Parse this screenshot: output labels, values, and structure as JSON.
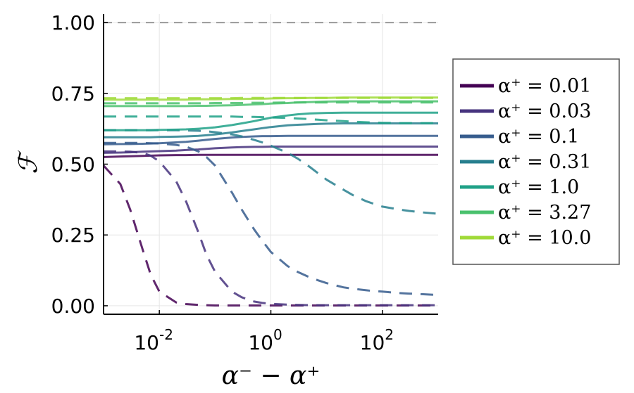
{
  "chart_data": {
    "type": "line",
    "title": "",
    "xlabel": "α⁻ − α⁺",
    "ylabel": "ℱ",
    "xscale": "log",
    "xlim": [
      0.001,
      1000
    ],
    "ylim": [
      -0.03,
      1.03
    ],
    "xticks": [
      {
        "value": 0.01,
        "base": "10",
        "exp": "-2"
      },
      {
        "value": 1,
        "base": "10",
        "exp": "0"
      },
      {
        "value": 100,
        "base": "10",
        "exp": "2"
      }
    ],
    "yticks": [
      {
        "value": 0.0,
        "label": "0.00"
      },
      {
        "value": 0.25,
        "label": "0.25"
      },
      {
        "value": 0.5,
        "label": "0.50"
      },
      {
        "value": 0.75,
        "label": "0.75"
      },
      {
        "value": 1.0,
        "label": "1.00"
      }
    ],
    "grid": true,
    "reference_line": {
      "y": 1.0,
      "style": "dashed",
      "color": "#999999"
    },
    "legend_position": "right",
    "x": [
      0.001,
      0.002,
      0.003,
      0.005,
      0.007,
      0.01,
      0.02,
      0.03,
      0.05,
      0.07,
      0.1,
      0.2,
      0.3,
      0.5,
      0.7,
      1,
      2,
      3,
      5,
      7,
      10,
      20,
      30,
      50,
      70,
      100,
      200,
      300,
      500,
      1000
    ],
    "series": [
      {
        "name": "α⁺ = 0.01",
        "color": "#440154",
        "solid": [
          0.525,
          0.527,
          0.528,
          0.529,
          0.53,
          0.531,
          0.532,
          0.532,
          0.533,
          0.533,
          0.533,
          0.533,
          0.533,
          0.533,
          0.533,
          0.533,
          0.533,
          0.533,
          0.533,
          0.533,
          0.533,
          0.533,
          0.533,
          0.533,
          0.533,
          0.533,
          0.533,
          0.533,
          0.533,
          0.533
        ],
        "dashed": [
          0.495,
          0.43,
          0.34,
          0.2,
          0.11,
          0.05,
          0.012,
          0.006,
          0.003,
          0.002,
          0.001,
          0.001,
          0.001,
          0.001,
          0.001,
          0.001,
          0.001,
          0.001,
          0.001,
          0.001,
          0.001,
          0.001,
          0.001,
          0.001,
          0.001,
          0.001,
          0.001,
          0.001,
          0.001,
          0.001
        ]
      },
      {
        "name": "α⁺ = 0.03",
        "color": "#46337e",
        "solid": [
          0.54,
          0.541,
          0.542,
          0.544,
          0.545,
          0.546,
          0.548,
          0.55,
          0.552,
          0.554,
          0.556,
          0.559,
          0.56,
          0.561,
          0.561,
          0.562,
          0.562,
          0.562,
          0.562,
          0.562,
          0.562,
          0.562,
          0.562,
          0.562,
          0.562,
          0.562,
          0.562,
          0.562,
          0.562,
          0.562
        ],
        "dashed": [
          0.545,
          0.545,
          0.544,
          0.54,
          0.53,
          0.51,
          0.44,
          0.37,
          0.26,
          0.18,
          0.12,
          0.05,
          0.03,
          0.015,
          0.01,
          0.007,
          0.004,
          0.003,
          0.002,
          0.002,
          0.002,
          0.002,
          0.002,
          0.002,
          0.002,
          0.002,
          0.002,
          0.002,
          0.002,
          0.002
        ]
      },
      {
        "name": "α⁺ = 0.1",
        "color": "#365c8d",
        "solid": [
          0.57,
          0.571,
          0.571,
          0.572,
          0.573,
          0.574,
          0.577,
          0.579,
          0.583,
          0.586,
          0.589,
          0.594,
          0.596,
          0.598,
          0.599,
          0.599,
          0.6,
          0.6,
          0.6,
          0.6,
          0.6,
          0.6,
          0.6,
          0.6,
          0.6,
          0.6,
          0.6,
          0.6,
          0.6,
          0.6
        ],
        "dashed": [
          0.575,
          0.575,
          0.575,
          0.575,
          0.574,
          0.573,
          0.568,
          0.562,
          0.545,
          0.525,
          0.495,
          0.4,
          0.34,
          0.27,
          0.23,
          0.19,
          0.14,
          0.12,
          0.1,
          0.09,
          0.08,
          0.065,
          0.06,
          0.055,
          0.052,
          0.05,
          0.045,
          0.043,
          0.041,
          0.038
        ]
      },
      {
        "name": "α⁺ = 0.31",
        "color": "#277f8e",
        "solid": [
          0.595,
          0.595,
          0.595,
          0.595,
          0.595,
          0.596,
          0.597,
          0.598,
          0.6,
          0.602,
          0.605,
          0.612,
          0.617,
          0.623,
          0.627,
          0.631,
          0.637,
          0.639,
          0.641,
          0.642,
          0.643,
          0.644,
          0.644,
          0.644,
          0.644,
          0.644,
          0.644,
          0.644,
          0.644,
          0.644
        ],
        "dashed": [
          0.62,
          0.62,
          0.62,
          0.62,
          0.62,
          0.62,
          0.62,
          0.619,
          0.618,
          0.616,
          0.613,
          0.605,
          0.598,
          0.586,
          0.577,
          0.565,
          0.54,
          0.52,
          0.49,
          0.468,
          0.445,
          0.41,
          0.39,
          0.37,
          0.36,
          0.35,
          0.34,
          0.335,
          0.33,
          0.325
        ]
      },
      {
        "name": "α⁺ = 1.0",
        "color": "#1fa187",
        "solid": [
          0.62,
          0.62,
          0.62,
          0.62,
          0.62,
          0.621,
          0.622,
          0.623,
          0.625,
          0.627,
          0.63,
          0.638,
          0.644,
          0.652,
          0.658,
          0.664,
          0.672,
          0.676,
          0.679,
          0.68,
          0.681,
          0.682,
          0.682,
          0.682,
          0.682,
          0.682,
          0.682,
          0.682,
          0.682,
          0.682
        ],
        "dashed": [
          0.668,
          0.668,
          0.668,
          0.668,
          0.668,
          0.668,
          0.668,
          0.668,
          0.668,
          0.668,
          0.668,
          0.668,
          0.667,
          0.667,
          0.666,
          0.665,
          0.663,
          0.661,
          0.659,
          0.657,
          0.655,
          0.652,
          0.65,
          0.648,
          0.647,
          0.646,
          0.645,
          0.645,
          0.645,
          0.645
        ]
      },
      {
        "name": "α⁺ = 3.27",
        "color": "#4ac16d",
        "solid": [
          0.705,
          0.705,
          0.705,
          0.705,
          0.705,
          0.705,
          0.705,
          0.705,
          0.706,
          0.706,
          0.707,
          0.708,
          0.709,
          0.711,
          0.712,
          0.714,
          0.716,
          0.718,
          0.719,
          0.72,
          0.721,
          0.722,
          0.722,
          0.722,
          0.722,
          0.722,
          0.722,
          0.722,
          0.722,
          0.722
        ],
        "dashed": [
          0.715,
          0.715,
          0.715,
          0.715,
          0.715,
          0.715,
          0.715,
          0.715,
          0.715,
          0.715,
          0.716,
          0.716,
          0.716,
          0.717,
          0.717,
          0.717,
          0.718,
          0.718,
          0.718,
          0.718,
          0.718,
          0.718,
          0.718,
          0.718,
          0.718,
          0.718,
          0.718,
          0.718,
          0.718,
          0.718
        ]
      },
      {
        "name": "α⁺ = 10.0",
        "color": "#a0da39",
        "solid": [
          0.728,
          0.728,
          0.728,
          0.728,
          0.728,
          0.728,
          0.728,
          0.728,
          0.729,
          0.729,
          0.729,
          0.73,
          0.73,
          0.731,
          0.731,
          0.732,
          0.733,
          0.733,
          0.734,
          0.734,
          0.734,
          0.735,
          0.735,
          0.735,
          0.735,
          0.735,
          0.735,
          0.735,
          0.735,
          0.735
        ],
        "dashed": [
          0.733,
          0.733,
          0.733,
          0.733,
          0.733,
          0.733,
          0.733,
          0.733,
          0.733,
          0.733,
          0.733,
          0.733,
          0.734,
          0.734,
          0.734,
          0.734,
          0.734,
          0.734,
          0.734,
          0.734,
          0.734,
          0.734,
          0.734,
          0.734,
          0.734,
          0.734,
          0.734,
          0.734,
          0.734,
          0.734
        ]
      }
    ]
  }
}
